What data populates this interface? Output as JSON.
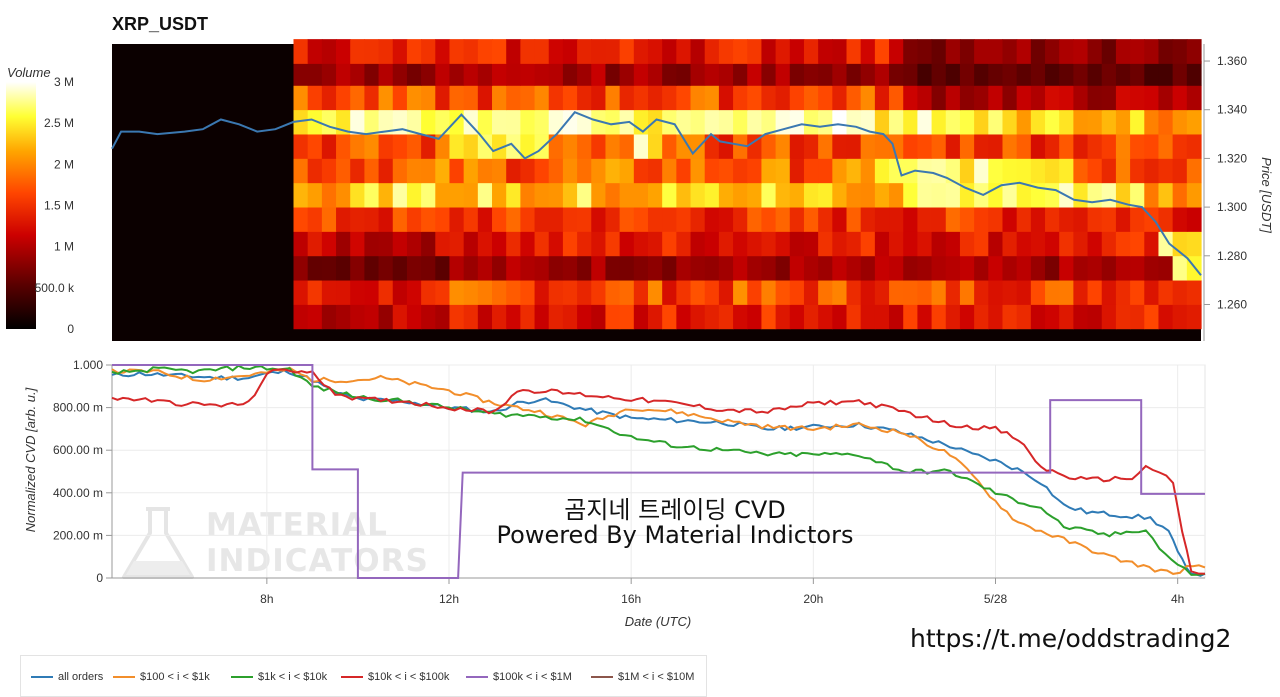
{
  "page_title": "XRP_USDT",
  "overlay": {
    "line1": "곰지네 트레이딩 CVD",
    "line2": "Powered By Material Indictors"
  },
  "watermark": {
    "line1": "MATERIAL",
    "line2": "INDICATORS",
    "icon": "flask-icon"
  },
  "url_text": "https://t.me/oddstrading2",
  "chart_data": [
    {
      "type": "heatmap",
      "title": "XRP_USDT",
      "colorbar": {
        "label": "Volume",
        "ticks": [
          "0",
          "500.0 k",
          "1 M",
          "1.5 M",
          "2 M",
          "2.5 M",
          "3 M"
        ],
        "range": [
          0,
          3000000
        ]
      },
      "y_axis": {
        "label": "Price [USDT]",
        "ticks": [
          "1.260",
          "1.280",
          "1.300",
          "1.320",
          "1.340",
          "1.360"
        ],
        "range": [
          1.245,
          1.367
        ]
      },
      "price_levels": [
        1.255,
        1.265,
        1.275,
        1.285,
        1.295,
        1.305,
        1.315,
        1.325,
        1.335,
        1.345,
        1.355,
        1.364
      ],
      "base_intensity": [
        0.45,
        0.55,
        0.3,
        0.45,
        0.5,
        0.75,
        0.6,
        0.55,
        0.8,
        0.55,
        0.3,
        0.45
      ],
      "hotspots": [
        {
          "x0": 3.9,
          "x1": 24.0,
          "level": 1.335,
          "value": 0.95
        },
        {
          "x0": 11.9,
          "x1": 14.2,
          "level": 1.325,
          "value": 0.95
        },
        {
          "x0": 16.1,
          "x1": 16.8,
          "level": 1.325,
          "value": 0.95
        },
        {
          "x0": 19.3,
          "x1": 21.3,
          "level": 1.335,
          "value": 1.0
        },
        {
          "x0": 21.3,
          "x1": 25.9,
          "level": 1.315,
          "value": 0.95
        },
        {
          "x0": 22.0,
          "x1": 27.5,
          "level": 1.305,
          "value": 0.95
        },
        {
          "x0": 27.7,
          "x1": 28.6,
          "level": 1.285,
          "value": 0.95
        },
        {
          "x0": 28.1,
          "x1": 28.6,
          "level": 1.275,
          "value": 0.95
        },
        {
          "x0": 3.9,
          "x1": 28.6,
          "level": 1.305,
          "value": 0.75
        }
      ],
      "no_data_until": 8.6,
      "price_line": {
        "color": "#3b78b1",
        "x": [
          4.6,
          4.8,
          5.2,
          5.6,
          6.2,
          6.6,
          7.0,
          7.4,
          7.8,
          8.2,
          8.6,
          9.0,
          9.4,
          9.8,
          10.2,
          10.6,
          11.0,
          11.4,
          11.8,
          12.0,
          12.3,
          12.7,
          13.0,
          13.4,
          13.7,
          14.0,
          14.4,
          14.8,
          15.2,
          15.6,
          16.0,
          16.3,
          16.6,
          17.0,
          17.4,
          17.8,
          18.0,
          18.3,
          18.6,
          19.0,
          19.4,
          19.8,
          20.2,
          20.6,
          21.0,
          21.3,
          21.6,
          21.8,
          22.0,
          22.3,
          22.7,
          23.0,
          23.4,
          23.8,
          24.2,
          24.6,
          25.0,
          25.4,
          25.8,
          26.2,
          26.6,
          27.0,
          27.3,
          27.6,
          27.9,
          28.1,
          28.3,
          28.6
        ],
        "y": [
          1.324,
          1.331,
          1.331,
          1.33,
          1.331,
          1.332,
          1.336,
          1.334,
          1.331,
          1.332,
          1.335,
          1.336,
          1.333,
          1.331,
          1.33,
          1.331,
          1.332,
          1.33,
          1.328,
          1.332,
          1.338,
          1.33,
          1.323,
          1.326,
          1.32,
          1.323,
          1.33,
          1.339,
          1.336,
          1.334,
          1.335,
          1.331,
          1.336,
          1.334,
          1.322,
          1.33,
          1.327,
          1.326,
          1.325,
          1.33,
          1.332,
          1.334,
          1.333,
          1.334,
          1.333,
          1.331,
          1.33,
          1.326,
          1.313,
          1.315,
          1.314,
          1.312,
          1.308,
          1.305,
          1.309,
          1.31,
          1.308,
          1.307,
          1.303,
          1.302,
          1.303,
          1.301,
          1.3,
          1.294,
          1.285,
          1.282,
          1.279,
          1.272
        ]
      }
    },
    {
      "type": "line",
      "xlabel": "Date (UTC)",
      "ylabel": "Normalized CVD [arb. u.]",
      "x_ticks": [
        {
          "x": 8,
          "label": "8h"
        },
        {
          "x": 12,
          "label": "12h"
        },
        {
          "x": 16,
          "label": "16h"
        },
        {
          "x": 20,
          "label": "20h"
        },
        {
          "x": 24,
          "label": "5/28"
        },
        {
          "x": 28,
          "label": "4h"
        }
      ],
      "xlim": [
        4.6,
        28.6
      ],
      "ylim": [
        0,
        1
      ],
      "y_ticks": [
        {
          "y": 0,
          "label": "0"
        },
        {
          "y": 0.2,
          "label": "200.00 m"
        },
        {
          "y": 0.4,
          "label": "400.00 m"
        },
        {
          "y": 0.6,
          "label": "600.00 m"
        },
        {
          "y": 0.8,
          "label": "800.00 m"
        },
        {
          "y": 1.0,
          "label": "1.000"
        }
      ],
      "series": [
        {
          "name": "all orders",
          "color": "#2f7bb6",
          "x": [
            4.6,
            5.2,
            6.0,
            7.0,
            7.6,
            8.0,
            8.5,
            9.0,
            9.5,
            10.0,
            11.0,
            12.0,
            13.0,
            13.5,
            14.0,
            15.0,
            16.0,
            17.0,
            18.0,
            19.0,
            20.0,
            21.0,
            21.8,
            22.5,
            23.0,
            23.5,
            24.0,
            24.6,
            25.0,
            25.5,
            26.0,
            26.5,
            27.0,
            27.4,
            27.8,
            28.0,
            28.2,
            28.4,
            28.6
          ],
          "y": [
            0.95,
            0.96,
            0.95,
            0.94,
            0.94,
            0.96,
            0.97,
            0.93,
            0.87,
            0.84,
            0.83,
            0.8,
            0.78,
            0.82,
            0.84,
            0.79,
            0.75,
            0.74,
            0.73,
            0.7,
            0.71,
            0.72,
            0.69,
            0.65,
            0.62,
            0.58,
            0.55,
            0.5,
            0.45,
            0.34,
            0.31,
            0.3,
            0.29,
            0.28,
            0.22,
            0.12,
            0.04,
            0.02,
            0.02
          ]
        },
        {
          "name": "$100 < i < $1k",
          "color": "#f28e2b",
          "x": [
            4.6,
            5.5,
            6.5,
            7.5,
            8.5,
            9.0,
            10.0,
            10.5,
            11.5,
            12.0,
            13.0,
            14.0,
            15.0,
            16.0,
            17.0,
            18.0,
            19.0,
            20.0,
            21.0,
            22.0,
            23.0,
            23.5,
            24.0,
            24.5,
            25.0,
            25.5,
            26.0,
            26.5,
            27.0,
            27.5,
            27.9,
            28.2,
            28.6
          ],
          "y": [
            0.97,
            0.97,
            0.93,
            0.95,
            0.98,
            0.93,
            0.93,
            0.94,
            0.9,
            0.88,
            0.82,
            0.78,
            0.72,
            0.8,
            0.78,
            0.74,
            0.71,
            0.7,
            0.72,
            0.68,
            0.58,
            0.48,
            0.36,
            0.26,
            0.22,
            0.18,
            0.14,
            0.1,
            0.07,
            0.04,
            0.02,
            0.05,
            0.05
          ]
        },
        {
          "name": "$1k < i < $10k",
          "color": "#2ca02c",
          "x": [
            4.6,
            5.5,
            6.5,
            7.5,
            8.5,
            9.0,
            10.0,
            11.0,
            12.0,
            13.0,
            14.0,
            15.0,
            16.0,
            17.0,
            18.0,
            19.0,
            20.0,
            21.0,
            21.5,
            22.0,
            23.0,
            23.5,
            24.0,
            24.5,
            25.0,
            25.5,
            26.0,
            26.5,
            27.0,
            27.3,
            27.6,
            28.0,
            28.3,
            28.6
          ],
          "y": [
            0.96,
            0.98,
            0.97,
            0.99,
            0.98,
            0.9,
            0.85,
            0.83,
            0.8,
            0.77,
            0.76,
            0.74,
            0.66,
            0.62,
            0.6,
            0.58,
            0.58,
            0.58,
            0.54,
            0.5,
            0.5,
            0.45,
            0.4,
            0.36,
            0.33,
            0.24,
            0.22,
            0.2,
            0.22,
            0.23,
            0.14,
            0.06,
            0.02,
            0.02
          ]
        },
        {
          "name": "$10k < i < $100k",
          "color": "#d62728",
          "x": [
            4.6,
            5.2,
            6.0,
            7.0,
            7.6,
            8.0,
            8.4,
            9.0,
            9.5,
            10.0,
            11.0,
            12.0,
            13.0,
            13.5,
            14.0,
            15.0,
            16.0,
            17.0,
            18.0,
            19.0,
            20.0,
            21.0,
            22.0,
            23.0,
            24.0,
            24.5,
            25.0,
            25.5,
            26.0,
            27.0,
            27.3,
            27.6,
            27.9,
            28.1,
            28.3,
            28.6
          ],
          "y": [
            0.84,
            0.84,
            0.82,
            0.81,
            0.82,
            0.96,
            0.98,
            0.96,
            0.87,
            0.84,
            0.83,
            0.8,
            0.78,
            0.88,
            0.88,
            0.86,
            0.84,
            0.82,
            0.79,
            0.78,
            0.82,
            0.83,
            0.78,
            0.72,
            0.7,
            0.65,
            0.52,
            0.48,
            0.46,
            0.47,
            0.52,
            0.5,
            0.44,
            0.22,
            0.03,
            0.02
          ]
        },
        {
          "name": "$100k < i < $1M",
          "color": "#9467bd",
          "step": true,
          "x": [
            4.6,
            9.0,
            9.0,
            10.0,
            10.0,
            12.2,
            12.3,
            25.2,
            25.2,
            27.2,
            27.2,
            28.6
          ],
          "y": [
            1.0,
            1.0,
            0.51,
            0.51,
            0.0,
            0.0,
            0.495,
            0.495,
            0.835,
            0.835,
            0.395,
            0.395
          ]
        },
        {
          "name": "$1M < i < $10M",
          "color": "#8c564b",
          "x": [],
          "y": []
        }
      ]
    }
  ]
}
